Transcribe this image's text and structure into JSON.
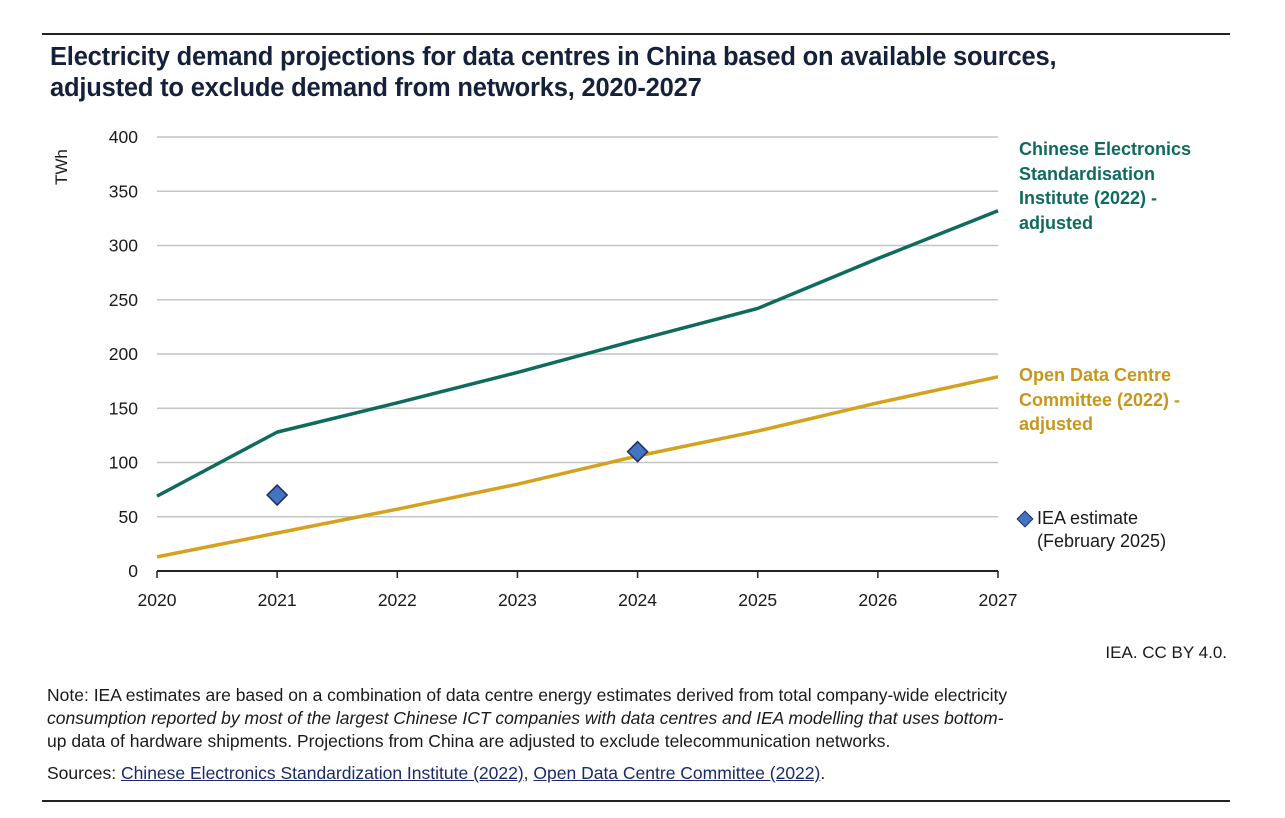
{
  "title_line1": "Electricity demand projections for data centres in China based on available sources,",
  "title_line2": "adjusted to exclude demand from networks, 2020-2027",
  "credit": "IEA. CC BY 4.0.",
  "note": {
    "part1": "Note: IEA estimates are based on a combination of data centre energy estimates derived from total company-wide electricity",
    "part2_italic": "consumption reported by most of the largest Chinese ICT companies with data centres and IEA modelling that uses bottom-",
    "part3": "up data of hardware shipments. Projections from China are adjusted to exclude telecommunication networks."
  },
  "sources": {
    "label": "Sources:",
    "links": [
      {
        "text": "Chinese Electronics Standardization Institute (2022)"
      },
      {
        "text": "Open Data Centre Committee (2022)"
      }
    ],
    "separator": ", ",
    "end": "."
  },
  "colors": {
    "cesi": "#0f6b5c",
    "odcc": "#d4a21f",
    "iea_fill": "#4472c4",
    "iea_stroke": "#1e2f5c",
    "grid": "#c4c4c4",
    "axis": "#222222"
  },
  "chart_data": {
    "type": "line",
    "title": "Electricity demand projections for data centres in China based on available sources, adjusted to exclude demand from networks, 2020-2027",
    "xlabel": "",
    "ylabel": "TWh",
    "ylim": [
      0,
      400
    ],
    "yticks": [
      0,
      50,
      100,
      150,
      200,
      250,
      300,
      350,
      400
    ],
    "x": [
      2020,
      2021,
      2022,
      2023,
      2024,
      2025,
      2026,
      2027
    ],
    "xticks": [
      "2020",
      "2021",
      "2022",
      "2023",
      "2024",
      "2025",
      "2026",
      "2027"
    ],
    "grid": "horizontal",
    "legend_placement": "right",
    "series": [
      {
        "name": "Chinese Electronics Standardisation Institute (2022) - adjusted",
        "key": "cesi",
        "kind": "line",
        "values": [
          69,
          128,
          155,
          183,
          213,
          242,
          288,
          332
        ]
      },
      {
        "name": "Open Data Centre Committee (2022) - adjusted",
        "key": "odcc",
        "kind": "line",
        "values": [
          13,
          35,
          57,
          80,
          106,
          129,
          155,
          179
        ]
      },
      {
        "name": "IEA estimate (February 2025)",
        "key": "iea",
        "kind": "marker",
        "points": [
          {
            "x": 2021,
            "y": 70
          },
          {
            "x": 2024,
            "y": 110
          }
        ]
      }
    ]
  },
  "legend": {
    "cesi": "Chinese Electronics Standardisation Institute (2022) - adjusted",
    "odcc": "Open Data Centre Committee (2022) - adjusted",
    "iea_line1": "IEA estimate",
    "iea_line2": "(February 2025)"
  }
}
